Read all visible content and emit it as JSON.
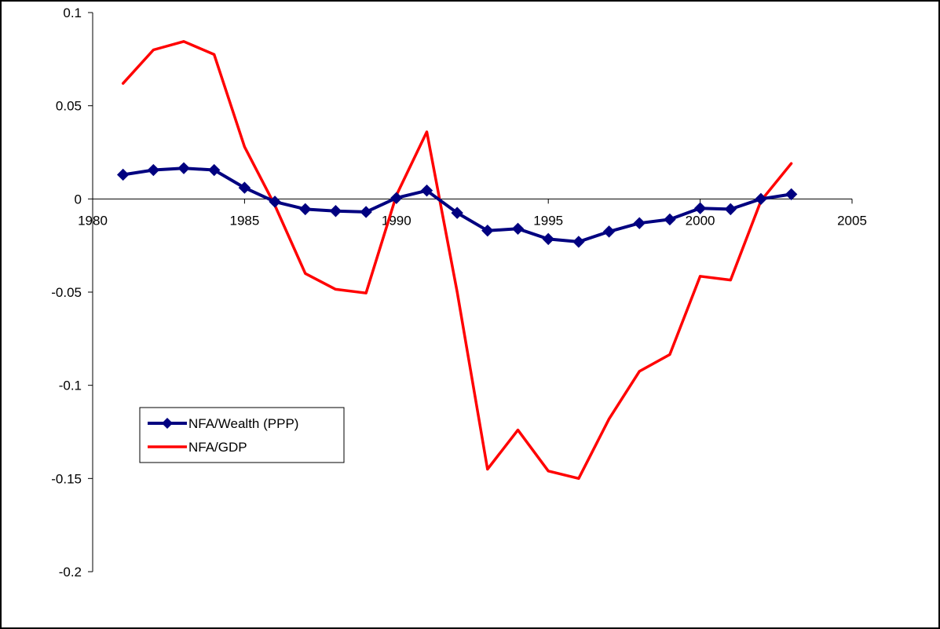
{
  "chart_data": {
    "type": "line",
    "title": "",
    "xlabel": "",
    "ylabel": "",
    "xlim": [
      1980,
      2005
    ],
    "ylim": [
      -0.2,
      0.1
    ],
    "xticks": [
      1980,
      1985,
      1990,
      1995,
      2000,
      2005
    ],
    "yticks": [
      0.1,
      0.05,
      0,
      -0.05,
      -0.1,
      -0.15,
      -0.2
    ],
    "xtick_labels": [
      "1980",
      "1985",
      "1990",
      "1995",
      "2000",
      "2005"
    ],
    "ytick_labels": [
      "0.1",
      "0.05",
      "0",
      "-0.05",
      "-0.1",
      "-0.15",
      "-0.2"
    ],
    "grid": false,
    "legend_position": "lower-left",
    "x": [
      1981,
      1982,
      1983,
      1984,
      1985,
      1986,
      1987,
      1988,
      1989,
      1990,
      1991,
      1992,
      1993,
      1994,
      1995,
      1996,
      1997,
      1998,
      1999,
      2000,
      2001,
      2002,
      2003
    ],
    "series": [
      {
        "name": "NFA/Wealth (PPP)",
        "color": "#000080",
        "marker": "diamond",
        "values": [
          0.013,
          0.0155,
          0.0165,
          0.0155,
          0.006,
          -0.0015,
          -0.0055,
          -0.0065,
          -0.007,
          0.0005,
          0.0045,
          -0.0075,
          -0.017,
          -0.016,
          -0.0215,
          -0.023,
          -0.0175,
          -0.013,
          -0.011,
          -0.005,
          -0.0055,
          0.0,
          0.0025
        ]
      },
      {
        "name": "NFA/GDP",
        "color": "#ff0000",
        "marker": "none",
        "values": [
          0.062,
          0.08,
          0.0845,
          0.0775,
          0.028,
          -0.0035,
          -0.04,
          -0.0485,
          -0.0505,
          0.002,
          0.036,
          -0.05,
          -0.145,
          -0.124,
          -0.146,
          -0.15,
          -0.118,
          -0.0925,
          -0.0835,
          -0.0415,
          -0.0435,
          -0.001,
          0.019
        ]
      }
    ]
  }
}
